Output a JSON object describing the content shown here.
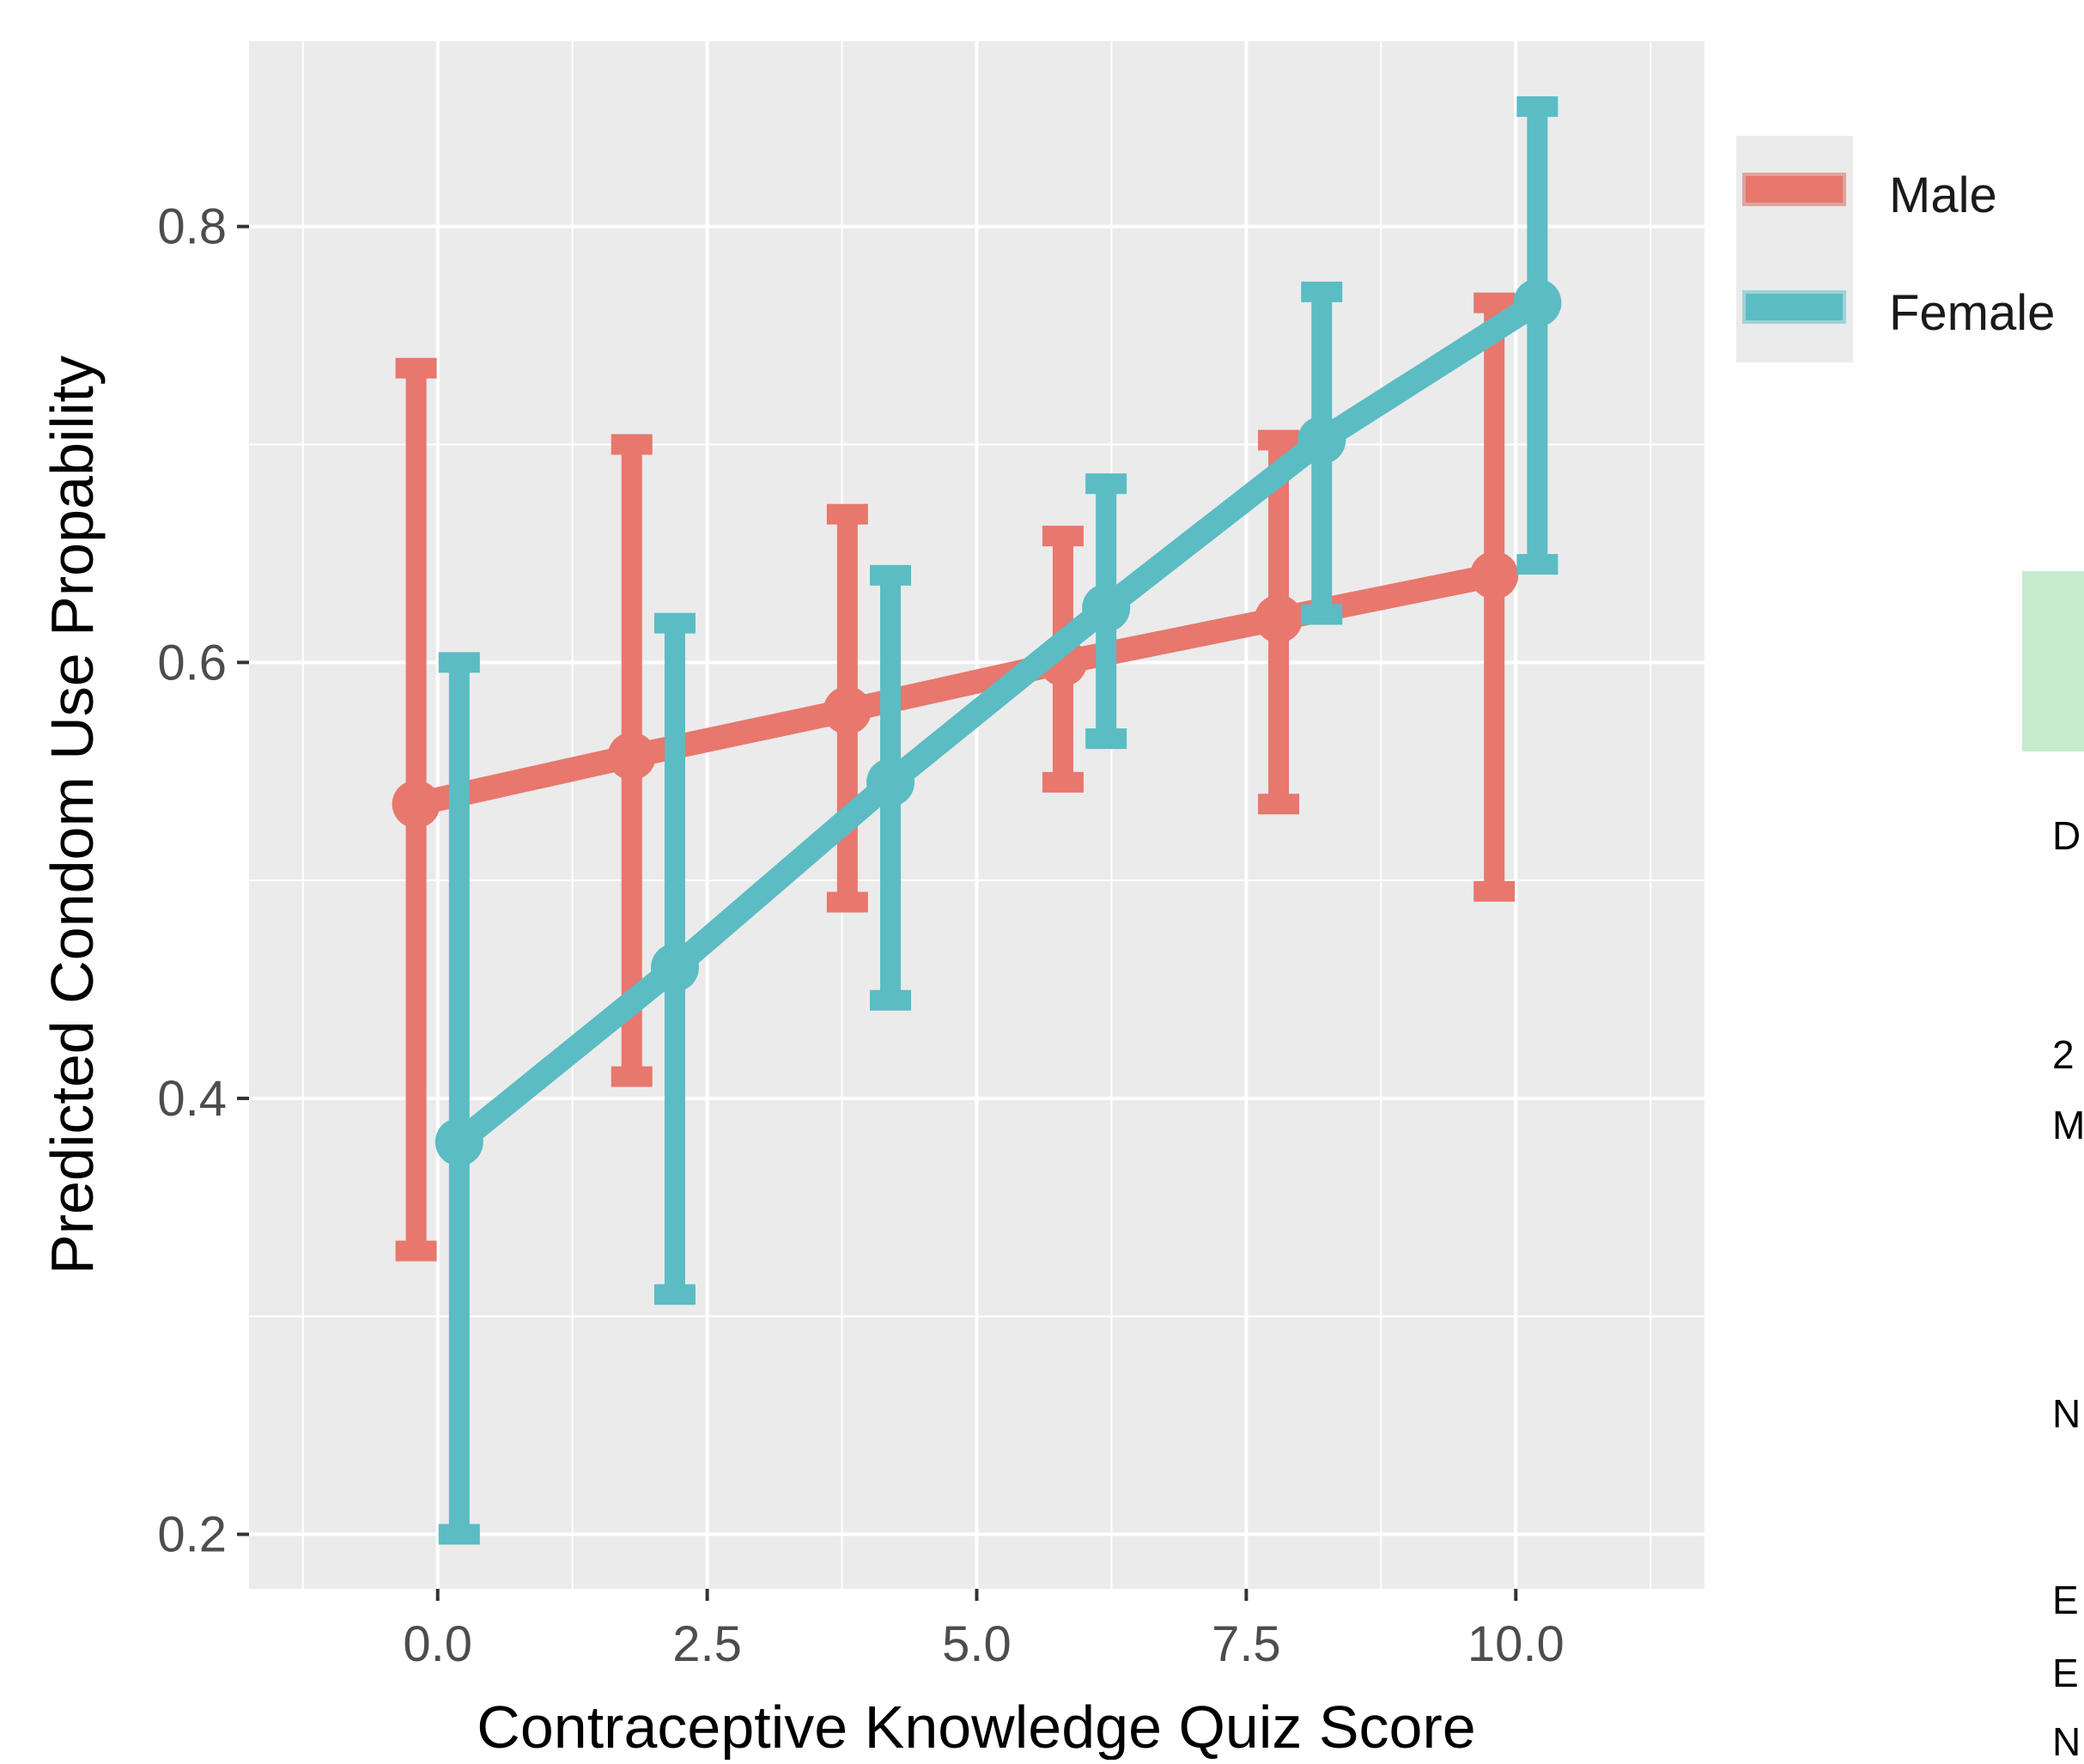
{
  "chart_data": {
    "type": "line",
    "title": "",
    "xlabel": "Contraceptive Knowledge Quiz Score",
    "ylabel": "Predicted Condom Use Propability",
    "xlim": [
      -1.75,
      11.75
    ],
    "ylim": [
      0.175,
      0.885
    ],
    "x_ticks": [
      0,
      2.5,
      5,
      7.5,
      10
    ],
    "x_tick_labels": [
      "0.0",
      "2.5",
      "5.0",
      "7.5",
      "10.0"
    ],
    "y_ticks": [
      0.2,
      0.4,
      0.6,
      0.8
    ],
    "y_tick_labels": [
      "0.2",
      "0.4",
      "0.6",
      "0.8"
    ],
    "grid": true,
    "legend_placement": "right",
    "series": [
      {
        "name": "Male",
        "color": "#e8776e",
        "x": [
          0,
          2,
          4,
          6,
          8,
          10
        ],
        "y": [
          0.535,
          0.557,
          0.578,
          0.6,
          0.62,
          0.64
        ],
        "lower": [
          0.33,
          0.41,
          0.49,
          0.545,
          0.535,
          0.495
        ],
        "upper": [
          0.735,
          0.7,
          0.668,
          0.658,
          0.702,
          0.765
        ]
      },
      {
        "name": "Female",
        "color": "#5bbcc4",
        "x": [
          0,
          2,
          4,
          6,
          8,
          10
        ],
        "y": [
          0.38,
          0.46,
          0.545,
          0.625,
          0.702,
          0.765
        ],
        "lower": [
          0.2,
          0.31,
          0.445,
          0.565,
          0.622,
          0.645
        ],
        "upper": [
          0.6,
          0.618,
          0.64,
          0.682,
          0.77,
          0.855
        ]
      }
    ]
  },
  "side_text": {
    "line1": "D",
    "line2": "2",
    "line3": "M",
    "line4": "N",
    "line5": "E",
    "line6": "E",
    "line7": "N"
  },
  "colors": {
    "panel_bg": "#ebebeb",
    "grid": "#ffffff",
    "side_box": "#c6ebcf"
  }
}
